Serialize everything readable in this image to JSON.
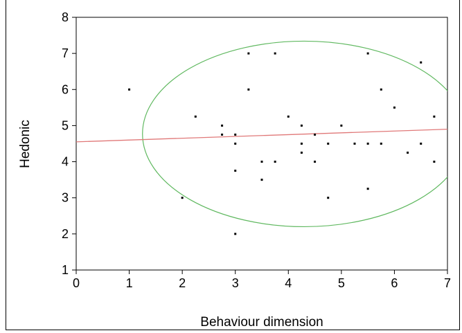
{
  "chart_data": {
    "type": "scatter",
    "title": "",
    "xlabel": "Behaviour dimension",
    "ylabel": "Hedonic",
    "xlim": [
      0,
      7
    ],
    "ylim": [
      1,
      8
    ],
    "x_ticks": [
      "0",
      "1",
      "2",
      "3",
      "4",
      "5",
      "6",
      "7"
    ],
    "y_ticks": [
      "1",
      "2",
      "3",
      "4",
      "5",
      "6",
      "7",
      "8"
    ],
    "grid": false,
    "points": [
      {
        "x": 1.0,
        "y": 6.0
      },
      {
        "x": 2.0,
        "y": 3.0
      },
      {
        "x": 2.25,
        "y": 5.25
      },
      {
        "x": 2.75,
        "y": 5.0
      },
      {
        "x": 2.75,
        "y": 4.75
      },
      {
        "x": 3.0,
        "y": 4.75
      },
      {
        "x": 3.0,
        "y": 4.5
      },
      {
        "x": 3.0,
        "y": 3.75
      },
      {
        "x": 3.0,
        "y": 2.0
      },
      {
        "x": 3.25,
        "y": 7.0
      },
      {
        "x": 3.25,
        "y": 6.0
      },
      {
        "x": 3.5,
        "y": 4.0
      },
      {
        "x": 3.5,
        "y": 3.5
      },
      {
        "x": 3.75,
        "y": 7.0
      },
      {
        "x": 3.75,
        "y": 4.0
      },
      {
        "x": 4.0,
        "y": 5.25
      },
      {
        "x": 4.25,
        "y": 5.0
      },
      {
        "x": 4.25,
        "y": 4.5
      },
      {
        "x": 4.25,
        "y": 4.25
      },
      {
        "x": 4.5,
        "y": 4.75
      },
      {
        "x": 4.5,
        "y": 4.0
      },
      {
        "x": 4.75,
        "y": 4.5
      },
      {
        "x": 4.75,
        "y": 3.0
      },
      {
        "x": 5.0,
        "y": 5.0
      },
      {
        "x": 5.25,
        "y": 4.5
      },
      {
        "x": 5.5,
        "y": 7.0
      },
      {
        "x": 5.5,
        "y": 4.5
      },
      {
        "x": 5.5,
        "y": 3.25
      },
      {
        "x": 5.75,
        "y": 6.0
      },
      {
        "x": 5.75,
        "y": 4.5
      },
      {
        "x": 6.0,
        "y": 5.5
      },
      {
        "x": 6.25,
        "y": 4.25
      },
      {
        "x": 6.5,
        "y": 6.75
      },
      {
        "x": 6.5,
        "y": 4.5
      },
      {
        "x": 6.75,
        "y": 5.25
      },
      {
        "x": 6.75,
        "y": 4.0
      }
    ],
    "fit_line": {
      "color": "#e07878",
      "x": [
        0,
        7
      ],
      "y": [
        4.55,
        4.9
      ]
    },
    "ellipse": {
      "color": "#5fb85f",
      "center": [
        4.3,
        4.77
      ],
      "radius_x": 3.05,
      "radius_y": 2.57
    },
    "colors": {
      "points": "#000000",
      "axes": "#000000"
    }
  }
}
